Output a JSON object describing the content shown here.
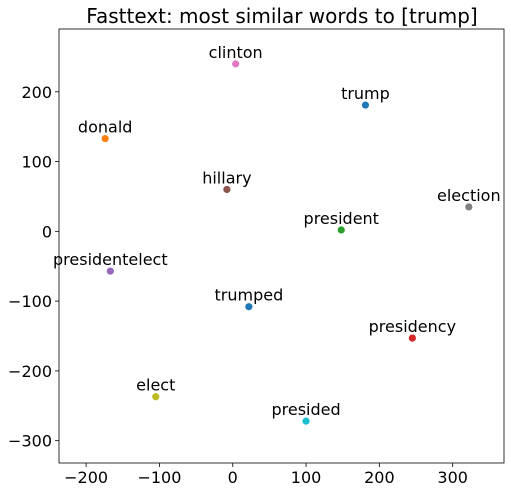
{
  "chart_data": {
    "type": "scatter",
    "title": "Fasttext: most similar words to [trump]",
    "xlabel": "",
    "ylabel": "",
    "xlim": [
      -237,
      370
    ],
    "ylim": [
      -332,
      290
    ],
    "xticks": [
      -200,
      -100,
      0,
      100,
      200,
      300
    ],
    "yticks": [
      200,
      100,
      0,
      -100,
      -200,
      -300
    ],
    "grid": false,
    "points": [
      {
        "label": "clinton",
        "x": 4,
        "y": 240,
        "color": "#e377c2"
      },
      {
        "label": "trump",
        "x": 181,
        "y": 181,
        "color": "#1f77b4"
      },
      {
        "label": "donald",
        "x": -174,
        "y": 133,
        "color": "#ff7f0e"
      },
      {
        "label": "hillary",
        "x": -8,
        "y": 60,
        "color": "#8c564b"
      },
      {
        "label": "election",
        "x": 322,
        "y": 35,
        "color": "#7f7f7f"
      },
      {
        "label": "president",
        "x": 148,
        "y": 2,
        "color": "#2ca02c"
      },
      {
        "label": "presidentelect",
        "x": -167,
        "y": -57,
        "color": "#9467bd"
      },
      {
        "label": "trumped",
        "x": 22,
        "y": -108,
        "color": "#1f77b4"
      },
      {
        "label": "presidency",
        "x": 245,
        "y": -153,
        "color": "#d62728"
      },
      {
        "label": "elect",
        "x": -105,
        "y": -237,
        "color": "#bcbd22"
      },
      {
        "label": "presided",
        "x": 100,
        "y": -272,
        "color": "#17becf"
      }
    ]
  }
}
